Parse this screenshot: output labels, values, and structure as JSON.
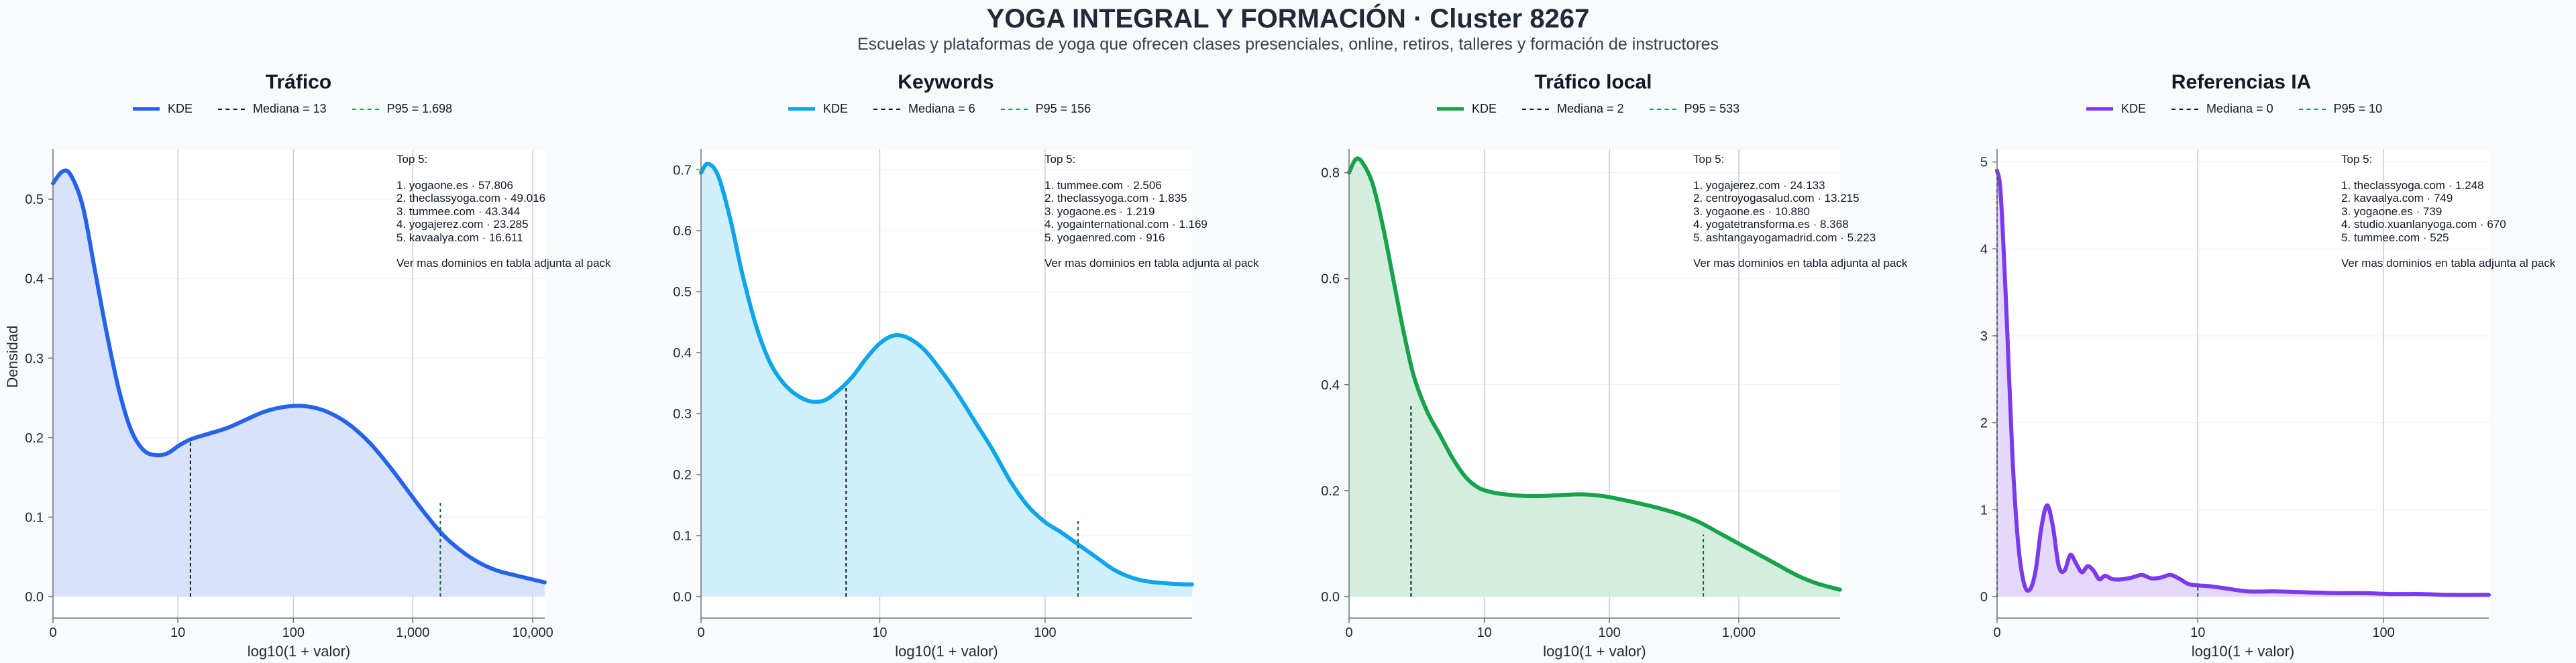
{
  "header": {
    "title": "YOGA INTEGRAL Y FORMACIÓN · Cluster 8267",
    "subtitle": "Escuelas y plataformas de yoga que ofrecen clases presenciales, online, retiros, talleres y formación de instructores"
  },
  "shared": {
    "ylabel": "Densidad",
    "xlabel": "log10(1 + valor)",
    "legend_kde": "KDE",
    "top_title": "Top 5:",
    "top_footer": "Ver mas dominios en tabla adjunta al pack"
  },
  "chart_data": [
    {
      "type": "area",
      "title": "Tráfico",
      "color": "#2563eb",
      "fill": "#d6e0fb",
      "xlabel": "log10(1 + valor)",
      "ylabel": "Densidad",
      "xlim": [
        0,
        4.1
      ],
      "ylim": [
        0,
        0.56
      ],
      "xticks": [
        {
          "v": 0,
          "label": "0"
        },
        {
          "v": 1.041,
          "label": "10"
        },
        {
          "v": 2.004,
          "label": "100"
        },
        {
          "v": 3.0,
          "label": "1,000"
        },
        {
          "v": 4.0,
          "label": "10,000"
        }
      ],
      "yticks": [
        0,
        0.1,
        0.2,
        0.3,
        0.4,
        0.5
      ],
      "ytick_labels": [
        "0.0",
        "0.1",
        "0.2",
        "0.3",
        "0.4",
        "0.5"
      ],
      "kde_x": [
        0,
        0.08,
        0.15,
        0.25,
        0.35,
        0.45,
        0.55,
        0.65,
        0.75,
        0.85,
        0.95,
        1.05,
        1.15,
        1.3,
        1.45,
        1.6,
        1.75,
        1.9,
        2.05,
        2.2,
        2.35,
        2.5,
        2.65,
        2.8,
        2.95,
        3.1,
        3.25,
        3.4,
        3.55,
        3.7,
        3.85,
        4.1
      ],
      "kde_y": [
        0.52,
        0.535,
        0.53,
        0.49,
        0.41,
        0.33,
        0.26,
        0.21,
        0.185,
        0.178,
        0.18,
        0.19,
        0.198,
        0.205,
        0.212,
        0.222,
        0.232,
        0.238,
        0.24,
        0.237,
        0.228,
        0.213,
        0.192,
        0.165,
        0.135,
        0.105,
        0.078,
        0.058,
        0.043,
        0.033,
        0.027,
        0.018
      ],
      "median_label": "Mediana = 13",
      "median_x": 1.146,
      "median_y": 0.198,
      "p95_label": "P95 = 1.698",
      "p95_x": 3.23,
      "p95_y": 0.12,
      "top5": [
        "1. yogaone.es · 57.806",
        "2. theclassyoga.com · 49.016",
        "3. tummee.com · 43.344",
        "4. yogajerez.com · 23.285",
        "5. kavaalya.com · 16.611"
      ]
    },
    {
      "type": "area",
      "title": "Keywords",
      "color": "#0ea5e9",
      "fill": "#cfeefb",
      "xlabel": "log10(1 + valor)",
      "ylabel": "",
      "xlim": [
        0,
        2.86
      ],
      "ylim": [
        0,
        0.73
      ],
      "xticks": [
        {
          "v": 0,
          "label": "0"
        },
        {
          "v": 1.041,
          "label": "10"
        },
        {
          "v": 2.004,
          "label": "100"
        }
      ],
      "yticks": [
        0,
        0.1,
        0.2,
        0.3,
        0.4,
        0.5,
        0.6,
        0.7
      ],
      "ytick_labels": [
        "0.0",
        "0.1",
        "0.2",
        "0.3",
        "0.4",
        "0.5",
        "0.6",
        "0.7"
      ],
      "kde_x": [
        0,
        0.04,
        0.1,
        0.17,
        0.24,
        0.32,
        0.4,
        0.48,
        0.56,
        0.64,
        0.72,
        0.8,
        0.88,
        0.96,
        1.04,
        1.12,
        1.2,
        1.3,
        1.4,
        1.5,
        1.6,
        1.7,
        1.8,
        1.9,
        2.0,
        2.1,
        2.2,
        2.3,
        2.4,
        2.5,
        2.6,
        2.75,
        2.86
      ],
      "kde_y": [
        0.695,
        0.71,
        0.69,
        0.62,
        0.53,
        0.445,
        0.385,
        0.35,
        0.33,
        0.32,
        0.322,
        0.338,
        0.36,
        0.39,
        0.415,
        0.428,
        0.425,
        0.405,
        0.37,
        0.33,
        0.285,
        0.24,
        0.19,
        0.15,
        0.123,
        0.105,
        0.085,
        0.065,
        0.045,
        0.032,
        0.025,
        0.021,
        0.02
      ],
      "median_label": "Mediana = 6",
      "median_x": 0.845,
      "median_y": 0.345,
      "p95_label": "P95 = 156",
      "p95_x": 2.196,
      "p95_y": 0.125,
      "top5": [
        "1. tummee.com · 2.506",
        "2. theclassyoga.com · 1.835",
        "3. yogaone.es · 1.219",
        "4. yogainternational.com · 1.169",
        "5. yogaenred.com · 916"
      ]
    },
    {
      "type": "area",
      "title": "Tráfico local",
      "color": "#16a34a",
      "fill": "#d1ecdc",
      "xlabel": "log10(1 + valor)",
      "ylabel": "",
      "xlim": [
        0,
        3.78
      ],
      "ylim": [
        0,
        0.84
      ],
      "xticks": [
        {
          "v": 0,
          "label": "0"
        },
        {
          "v": 1.041,
          "label": "10"
        },
        {
          "v": 2.004,
          "label": "100"
        },
        {
          "v": 3.0,
          "label": "1,000"
        }
      ],
      "yticks": [
        0,
        0.2,
        0.4,
        0.6,
        0.8
      ],
      "ytick_labels": [
        "0.0",
        "0.2",
        "0.4",
        "0.6",
        "0.8"
      ],
      "kde_x": [
        0,
        0.05,
        0.1,
        0.18,
        0.26,
        0.34,
        0.42,
        0.5,
        0.6,
        0.7,
        0.8,
        0.9,
        1.0,
        1.1,
        1.2,
        1.35,
        1.5,
        1.65,
        1.8,
        1.95,
        2.1,
        2.25,
        2.4,
        2.55,
        2.7,
        2.85,
        3.0,
        3.15,
        3.3,
        3.45,
        3.6,
        3.78
      ],
      "kde_y": [
        0.8,
        0.825,
        0.82,
        0.78,
        0.7,
        0.6,
        0.5,
        0.415,
        0.35,
        0.305,
        0.26,
        0.225,
        0.205,
        0.197,
        0.193,
        0.19,
        0.19,
        0.192,
        0.193,
        0.19,
        0.183,
        0.175,
        0.166,
        0.155,
        0.14,
        0.12,
        0.1,
        0.08,
        0.06,
        0.04,
        0.025,
        0.013
      ],
      "median_label": "Mediana = 2",
      "median_x": 0.477,
      "median_y": 0.36,
      "p95_label": "P95 = 533",
      "p95_x": 2.727,
      "p95_y": 0.117,
      "top5": [
        "1. yogajerez.com · 24.133",
        "2. centroyogasalud.com · 13.215",
        "3. yogaone.es · 10.880",
        "4. yogatetransforma.es · 8.368",
        "5. ashtangayogamadrid.com · 5.223"
      ]
    },
    {
      "type": "area",
      "title": "Referencias IA",
      "color": "#7c3aed",
      "fill": "#e3d6fb",
      "xlabel": "log10(1 + valor)",
      "ylabel": "",
      "xlim": [
        0,
        2.55
      ],
      "ylim": [
        0,
        5.12
      ],
      "xticks": [
        {
          "v": 0,
          "label": "0"
        },
        {
          "v": 1.041,
          "label": "10"
        },
        {
          "v": 2.004,
          "label": "100"
        }
      ],
      "yticks": [
        0,
        1,
        2,
        3,
        4,
        5
      ],
      "ytick_labels": [
        "0",
        "1",
        "2",
        "3",
        "4",
        "5"
      ],
      "kde_x": [
        0,
        0.02,
        0.05,
        0.08,
        0.11,
        0.14,
        0.17,
        0.2,
        0.23,
        0.26,
        0.29,
        0.32,
        0.35,
        0.38,
        0.41,
        0.44,
        0.47,
        0.5,
        0.53,
        0.56,
        0.6,
        0.65,
        0.7,
        0.75,
        0.8,
        0.85,
        0.9,
        0.95,
        1.0,
        1.1,
        1.2,
        1.3,
        1.45,
        1.6,
        1.75,
        1.9,
        2.05,
        2.2,
        2.35,
        2.55
      ],
      "kde_y": [
        4.9,
        4.6,
        3.2,
        1.6,
        0.6,
        0.15,
        0.08,
        0.3,
        0.8,
        1.05,
        0.8,
        0.35,
        0.3,
        0.48,
        0.38,
        0.28,
        0.35,
        0.3,
        0.2,
        0.24,
        0.2,
        0.2,
        0.22,
        0.25,
        0.21,
        0.22,
        0.25,
        0.2,
        0.14,
        0.12,
        0.09,
        0.06,
        0.06,
        0.05,
        0.04,
        0.04,
        0.03,
        0.03,
        0.02,
        0.02
      ],
      "median_label": "Mediana = 0",
      "median_x": 0,
      "median_y": 4.9,
      "p95_label": "P95 = 10",
      "p95_x": 1.041,
      "p95_y": 0.14,
      "top5": [
        "1. theclassyoga.com · 1.248",
        "2. kavaalya.com · 749",
        "3. yogaone.es · 739",
        "4. studio.xuanlanyoga.com · 670",
        "5. tummee.com · 525"
      ]
    }
  ]
}
